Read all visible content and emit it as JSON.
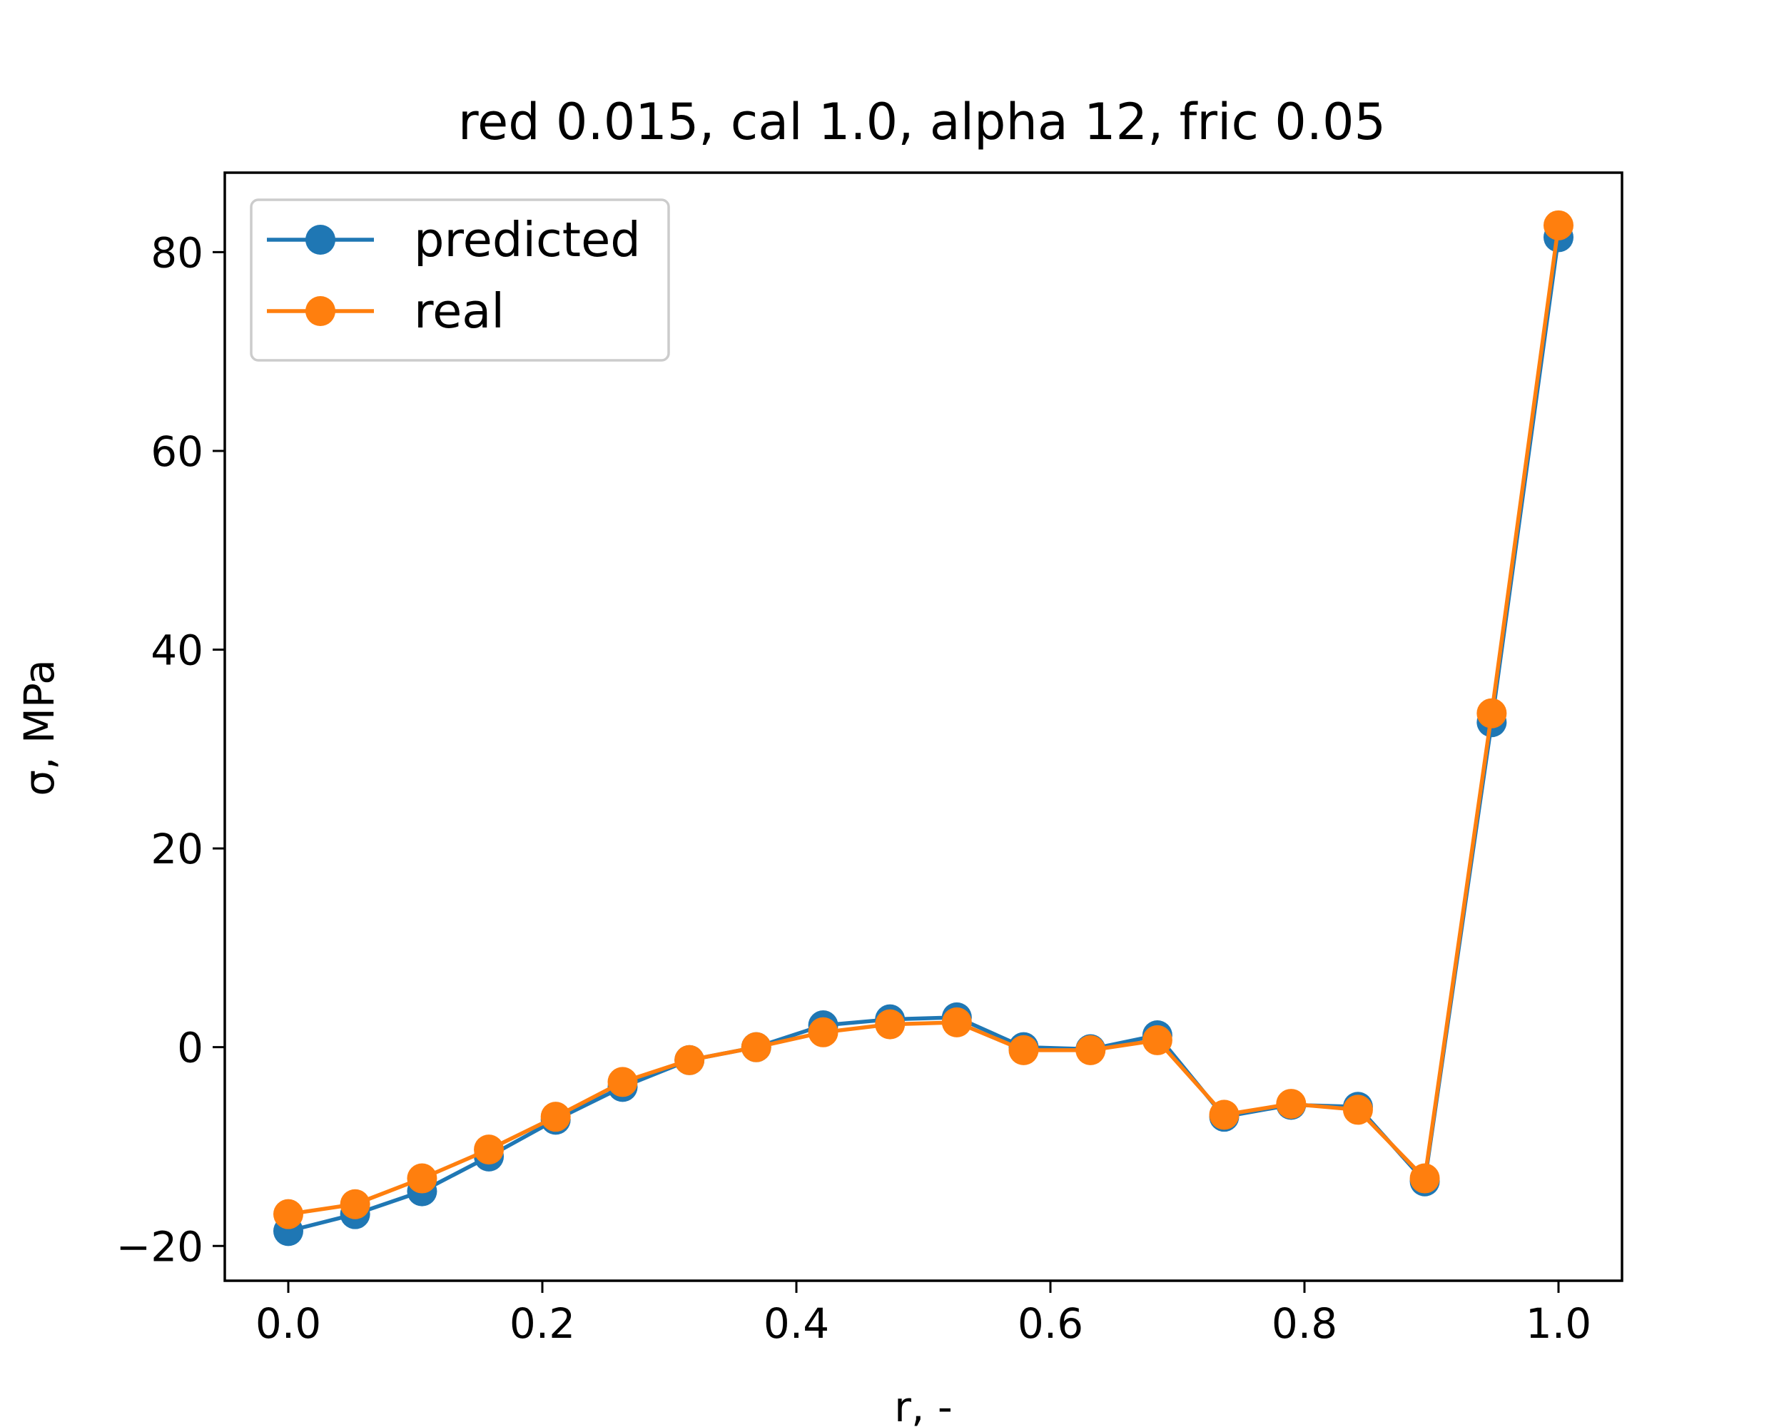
{
  "chart_data": {
    "type": "line",
    "title": "red 0.015, cal 1.0, alpha 12, fric 0.05",
    "xlabel": "r, -",
    "ylabel": "σ, MPa",
    "xlim": [
      -0.05,
      1.05
    ],
    "ylim": [
      -23.5,
      88
    ],
    "xticks": [
      0.0,
      0.2,
      0.4,
      0.6,
      0.8,
      1.0
    ],
    "xtick_labels": [
      "0.0",
      "0.2",
      "0.4",
      "0.6",
      "0.8",
      "1.0"
    ],
    "yticks": [
      -20,
      0,
      20,
      40,
      60,
      80
    ],
    "ytick_labels": [
      "−20",
      "0",
      "20",
      "40",
      "60",
      "80"
    ],
    "grid": false,
    "legend_position": "upper-left",
    "x": [
      0.0,
      0.0526,
      0.1053,
      0.1579,
      0.2105,
      0.2632,
      0.3158,
      0.3684,
      0.4211,
      0.4737,
      0.5263,
      0.5789,
      0.6316,
      0.6842,
      0.7368,
      0.7895,
      0.8421,
      0.8947,
      0.9474,
      1.0
    ],
    "series": [
      {
        "name": "predicted",
        "color": "#1f77b4",
        "values": [
          -18.5,
          -16.8,
          -14.5,
          -11.0,
          -7.3,
          -4.0,
          -1.3,
          0.0,
          2.2,
          2.8,
          3.0,
          0.0,
          -0.2,
          1.2,
          -7.0,
          -5.8,
          -6.0,
          -13.5,
          32.7,
          81.5
        ]
      },
      {
        "name": "real",
        "color": "#ff7f0e",
        "values": [
          -16.8,
          -15.8,
          -13.2,
          -10.3,
          -7.0,
          -3.5,
          -1.3,
          0.0,
          1.5,
          2.3,
          2.5,
          -0.3,
          -0.3,
          0.7,
          -6.8,
          -5.7,
          -6.3,
          -13.2,
          33.6,
          82.7
        ]
      }
    ]
  }
}
